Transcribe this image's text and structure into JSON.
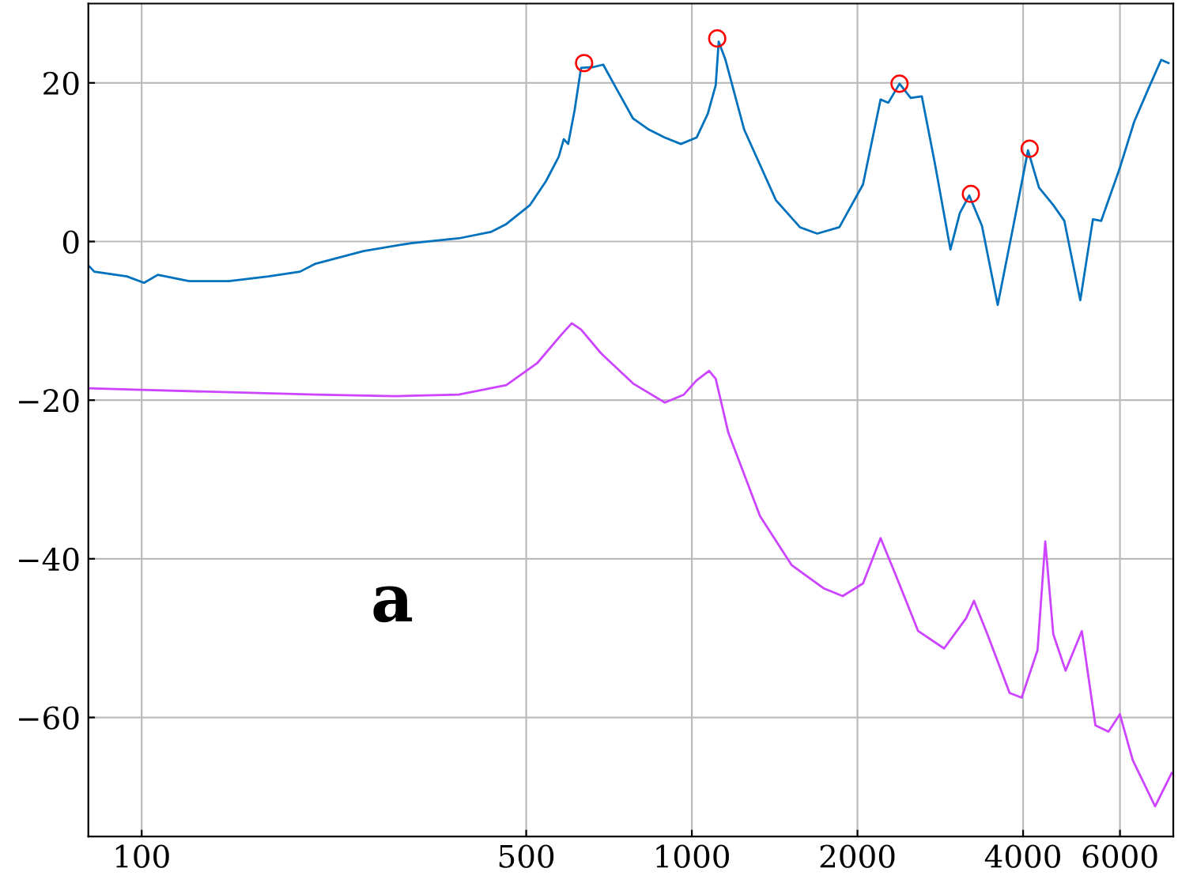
{
  "chart_data": {
    "type": "line",
    "log": "x",
    "grid": true,
    "xlim": [
      80,
      7500
    ],
    "ylim": [
      -75,
      30
    ],
    "xticks": [
      100,
      500,
      1000,
      2000,
      4000,
      6000
    ],
    "yticks": [
      -60,
      -40,
      -20,
      0,
      20
    ],
    "annotations": [
      "a"
    ],
    "series": [
      {
        "color": "#0072bd",
        "marker": "none",
        "x": [
          80,
          82,
          94,
          101,
          107,
          122,
          144,
          170,
          194,
          207,
          253,
          309,
          377,
          431,
          460,
          508,
          543,
          573,
          585,
          596,
          612,
          629,
          663,
          690,
          733,
          782,
          836,
          893,
          955,
          1020,
          1069,
          1105,
          1119,
          1150,
          1245,
          1422,
          1572,
          1690,
          1854,
          2047,
          2203,
          2276,
          2385,
          2499,
          2618,
          2761,
          2951,
          3070,
          3193,
          3367,
          3597,
          3846,
          4083,
          4276,
          4539,
          4754,
          5082,
          5358,
          5546,
          5998,
          6368,
          6761,
          7129,
          7350
        ],
        "values": [
          -3.0,
          -3.8,
          -4.4,
          -5.2,
          -4.2,
          -5.0,
          -5.0,
          -4.4,
          -3.8,
          -2.8,
          -1.2,
          -0.2,
          0.4,
          1.2,
          2.2,
          4.6,
          7.6,
          10.7,
          12.9,
          12.3,
          16.5,
          21.9,
          22.0,
          22.3,
          19.0,
          15.5,
          14.1,
          13.1,
          12.3,
          13.1,
          16.1,
          19.7,
          25.2,
          23.0,
          14.1,
          5.2,
          1.8,
          1.0,
          1.8,
          7.2,
          17.9,
          17.5,
          19.9,
          18.1,
          18.3,
          10.1,
          -1.0,
          3.6,
          5.8,
          2.0,
          -8.0,
          2.2,
          11.5,
          6.8,
          4.6,
          2.6,
          -7.4,
          2.8,
          2.6,
          9.3,
          15.1,
          19.3,
          22.9,
          22.5
        ]
      },
      {
        "type": "scatter",
        "color": "#ff0000",
        "marker": "circle",
        "x": [
          637,
          1112,
          2385,
          3215,
          4111
        ],
        "values": [
          22.5,
          25.6,
          19.9,
          6.0,
          11.7
        ]
      },
      {
        "color": "#cc44ff",
        "marker": "none",
        "x": [
          80,
          100,
          207,
          289,
          377,
          460,
          524,
          580,
          605,
          629,
          684,
          782,
          893,
          967,
          1020,
          1075,
          1105,
          1165,
          1330,
          1519,
          1734,
          1880,
          2047,
          2203,
          2343,
          2578,
          2874,
          3151,
          3257,
          3445,
          3780,
          3976,
          4250,
          4389,
          4539,
          4779,
          5115,
          5414,
          5718,
          5998,
          6330,
          6950,
          7450
        ],
        "values": [
          -18.5,
          -18.7,
          -19.3,
          -19.5,
          -19.3,
          -18.1,
          -15.3,
          -11.7,
          -10.3,
          -11.1,
          -14.1,
          -17.9,
          -20.3,
          -19.3,
          -17.5,
          -16.3,
          -17.3,
          -24.1,
          -34.6,
          -40.8,
          -43.7,
          -44.7,
          -43.1,
          -37.4,
          -41.9,
          -49.1,
          -51.3,
          -47.5,
          -45.3,
          -49.5,
          -56.9,
          -57.5,
          -51.5,
          -37.8,
          -49.5,
          -54.1,
          -49.1,
          -61.0,
          -61.8,
          -59.6,
          -65.4,
          -71.2,
          -67.0
        ]
      }
    ]
  }
}
